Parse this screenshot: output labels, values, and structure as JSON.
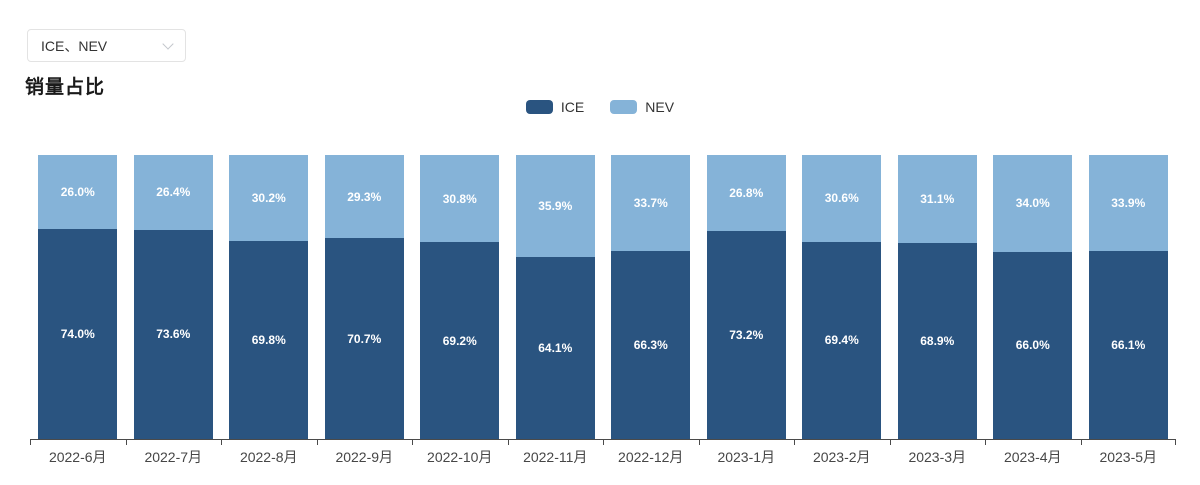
{
  "controls": {
    "series_select": {
      "value": "ICE、NEV"
    }
  },
  "header": {
    "title": "销量占比"
  },
  "chart_data": {
    "type": "bar",
    "stacked": true,
    "title": "销量占比",
    "categories": [
      "2022-6月",
      "2022-7月",
      "2022-8月",
      "2022-9月",
      "2022-10月",
      "2022-11月",
      "2022-12月",
      "2023-1月",
      "2023-2月",
      "2023-3月",
      "2023-4月",
      "2023-5月"
    ],
    "series": [
      {
        "name": "ICE",
        "color": "#2a5480",
        "values": [
          74.0,
          73.6,
          69.8,
          70.7,
          69.2,
          64.1,
          66.3,
          73.2,
          69.4,
          68.9,
          66.0,
          66.1
        ]
      },
      {
        "name": "NEV",
        "color": "#85b3d8",
        "values": [
          26.0,
          26.4,
          30.2,
          29.3,
          30.8,
          35.9,
          33.7,
          26.8,
          30.6,
          31.1,
          34.0,
          33.9
        ]
      }
    ],
    "value_unit": "%",
    "ylim": [
      0,
      100
    ],
    "grid": false,
    "legend_position": "top-center",
    "bar_label_color": "#ffffff",
    "axis_label_color": "#464646"
  }
}
